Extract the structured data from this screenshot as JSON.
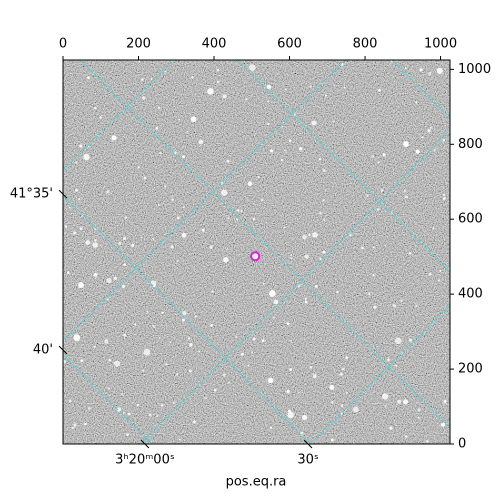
{
  "chart_data": {
    "type": "image",
    "xlabel": "pos.eq.ra",
    "xlim": [
      0,
      1025
    ],
    "ylim": [
      0,
      1025
    ],
    "xticks": [
      0,
      200,
      400,
      600,
      800,
      1000
    ],
    "yticks": [
      0,
      200,
      400,
      600,
      800,
      1000
    ],
    "world_xticks": [
      {
        "value": 217,
        "label": "3ʰ20ᵐ00ˢ"
      },
      {
        "value": 649,
        "label": "30ˢ"
      }
    ],
    "world_yticks": [
      {
        "value": 667,
        "label": "41°35'"
      },
      {
        "value": 251,
        "label": "40'"
      }
    ],
    "markers": {
      "x": [
        509
      ],
      "y": [
        501
      ],
      "color": "#e020e0"
    },
    "grid_color": "#40d8d8"
  }
}
